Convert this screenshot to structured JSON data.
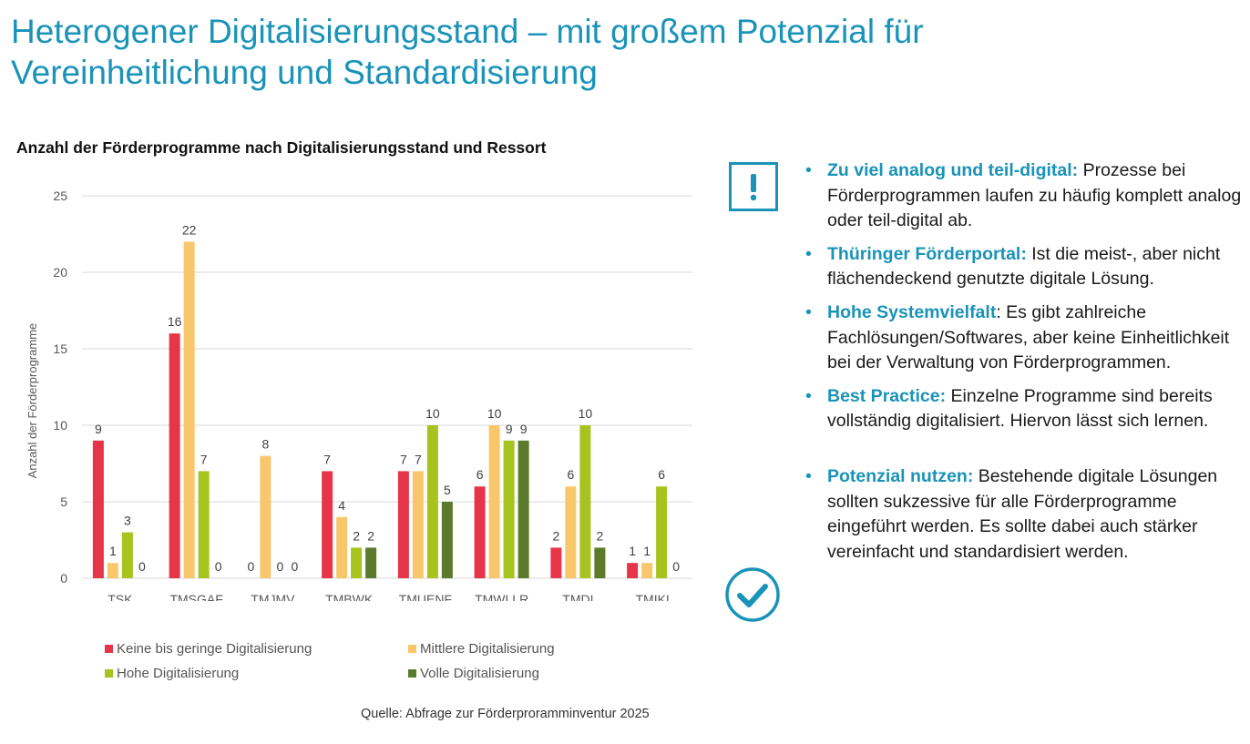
{
  "slide": {
    "title_line1": "Heterogener Digitalisierungsstand – mit großem Potenzial für",
    "title_line2": "Vereinheitlichung und Standardisierung",
    "source": "Quelle: Abfrage zur Förderproramminventur 2025"
  },
  "chart_data": {
    "type": "bar",
    "title": "Anzahl der Förderprogramme nach Digitalisierungsstand und Ressort",
    "xlabel": "",
    "ylabel": "Anzahl der Förderprogramme",
    "ylim": [
      0,
      25
    ],
    "yticks": [
      0,
      5,
      10,
      15,
      20,
      25
    ],
    "grid": true,
    "legend_position": "bottom",
    "categories": [
      "TSK",
      "TMSGAF",
      "TMJMV",
      "TMBWK",
      "TMUENF",
      "TMWLLR",
      "TMDI",
      "TMIKL"
    ],
    "series": [
      {
        "name": "Keine bis geringe Digitalisierung",
        "color": "#e63549",
        "values": [
          9,
          16,
          0,
          7,
          7,
          6,
          2,
          1
        ]
      },
      {
        "name": "Mittlere Digitalisierung",
        "color": "#f8c76c",
        "values": [
          1,
          22,
          8,
          4,
          7,
          10,
          6,
          1
        ]
      },
      {
        "name": "Hohe Digitalisierung",
        "color": "#a6c31e",
        "values": [
          3,
          7,
          0,
          2,
          10,
          9,
          10,
          6
        ]
      },
      {
        "name": "Volle Digitalisierung",
        "color": "#5b7a2b",
        "values": [
          0,
          0,
          0,
          2,
          5,
          9,
          2,
          0
        ]
      }
    ]
  },
  "panel": {
    "warning_icon": "exclamation-square-icon",
    "check_icon": "check-circle-icon",
    "accent": "#1a93b8",
    "bullets": [
      {
        "heading": "Zu viel analog und teil-digital:",
        "text": " Prozesse bei Förderprogrammen laufen zu häufig komplett analog oder teil-digital ab."
      },
      {
        "heading": "Thüringer Förderportal:",
        "text": " Ist die meist-, aber nicht flächendeckend genutzte digitale Lösung."
      },
      {
        "heading": "Hohe Systemvielfalt",
        "text": ": Es gibt zahlreiche Fachlösungen/Softwares, aber keine Einheitlichkeit bei der Verwaltung von Förderprogrammen."
      },
      {
        "heading": "Best Practice:",
        "text": " Einzelne Programme sind bereits vollständig digitalisiert. Hiervon lässt sich lernen."
      },
      {
        "heading": "Potenzial nutzen:",
        "text": " Bestehende digitale Lösungen sollten sukzessive für alle Förderprogramme eingeführt werden. Es sollte dabei auch stärker vereinfacht und standardisiert werden."
      }
    ]
  }
}
